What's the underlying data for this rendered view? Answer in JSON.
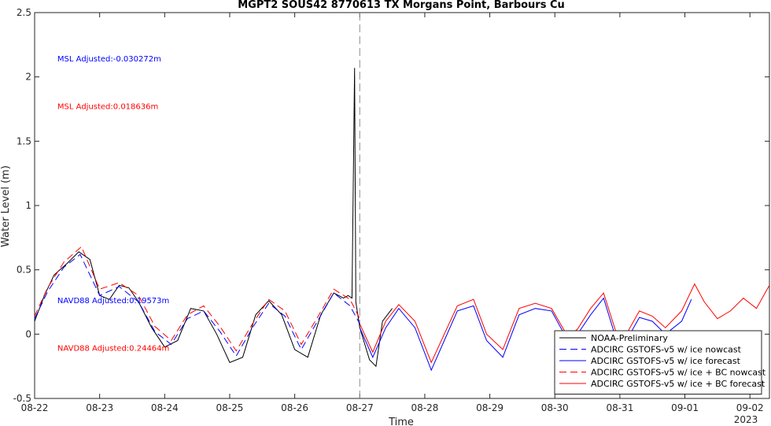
{
  "chart_data": {
    "type": "line",
    "title": "MGPT2 SOUS42 8770613 TX Morgans Point, Barbours Cu",
    "xlabel": "Time",
    "ylabel": "Water Level (m)",
    "ylim": [
      -0.5,
      2.5
    ],
    "xlim": [
      0,
      11.3
    ],
    "y_ticks": [
      -0.5,
      0,
      0.5,
      1,
      1.5,
      2,
      2.5
    ],
    "y_tick_labels": [
      "-0.5",
      "0",
      "0.5",
      "1",
      "1.5",
      "2",
      "2.5"
    ],
    "x_ticks": [
      0,
      1,
      2,
      3,
      4,
      5,
      6,
      7,
      8,
      9,
      10,
      11
    ],
    "x_tick_labels": [
      "08-22",
      "08-23",
      "08-24",
      "08-25",
      "08-26",
      "08-27",
      "08-28",
      "08-29",
      "08-30",
      "08-31",
      "09-01",
      "09-02"
    ],
    "x_year_label": "2023",
    "forecast_start_x": 5.0,
    "grid": false,
    "legend_position": "bottom-right",
    "annotations": [
      {
        "text": "MSL Adjusted:-0.030272m",
        "x": 0.35,
        "y": 2.12,
        "color": "#0000ff"
      },
      {
        "text": "MSL Adjusted:0.018636m",
        "x": 0.35,
        "y": 1.75,
        "color": "#ff0000"
      },
      {
        "text": "NAVD88 Adjusted:0.19573m",
        "x": 0.35,
        "y": 0.24,
        "color": "#0000ff"
      },
      {
        "text": "NAVD88 Adjusted:0.24464m",
        "x": 0.35,
        "y": -0.13,
        "color": "#ff0000"
      }
    ],
    "series": [
      {
        "name": "NOAA-Preliminary",
        "color": "#000000",
        "dash": "solid",
        "x": [
          0,
          0.15,
          0.3,
          0.5,
          0.68,
          0.85,
          1.0,
          1.15,
          1.3,
          1.45,
          1.6,
          1.8,
          2.0,
          2.2,
          2.4,
          2.6,
          2.8,
          3.0,
          3.2,
          3.4,
          3.6,
          3.8,
          4.0,
          4.2,
          4.4,
          4.6,
          4.75,
          4.82,
          4.88,
          4.92,
          4.94,
          5.0,
          5.15,
          5.25,
          5.35,
          5.5
        ],
        "y": [
          0.1,
          0.3,
          0.46,
          0.55,
          0.64,
          0.58,
          0.3,
          0.27,
          0.38,
          0.36,
          0.25,
          0.05,
          -0.1,
          -0.05,
          0.2,
          0.18,
          0.0,
          -0.22,
          -0.18,
          0.15,
          0.26,
          0.15,
          -0.12,
          -0.18,
          0.15,
          0.32,
          0.28,
          0.3,
          0.28,
          2.07,
          0.25,
          0.05,
          -0.2,
          -0.25,
          0.1,
          0.2
        ]
      },
      {
        "name": "ADCIRC GSTOFS-v5 w/ ice nowcast",
        "color": "#0000ff",
        "dash": "dashed",
        "x": [
          0,
          0.2,
          0.45,
          0.7,
          1.0,
          1.3,
          1.6,
          1.85,
          2.1,
          2.35,
          2.6,
          2.85,
          3.1,
          3.35,
          3.6,
          3.85,
          4.1,
          4.35,
          4.6,
          4.85,
          5.0
        ],
        "y": [
          0.12,
          0.33,
          0.52,
          0.62,
          0.3,
          0.37,
          0.25,
          0.02,
          -0.08,
          0.12,
          0.18,
          0.02,
          -0.17,
          0.05,
          0.24,
          0.14,
          -0.12,
          0.1,
          0.32,
          0.22,
          0.08
        ]
      },
      {
        "name": "ADCIRC GSTOFS-v5 w/ ice forecast",
        "color": "#0000ff",
        "dash": "solid",
        "x": [
          5.0,
          5.2,
          5.4,
          5.6,
          5.85,
          6.1,
          6.3,
          6.5,
          6.75,
          6.95,
          7.2,
          7.45,
          7.7,
          7.95,
          8.2,
          8.35,
          8.55,
          8.75,
          8.95,
          9.1,
          9.3,
          9.5,
          9.7,
          9.95,
          10.1
        ],
        "y": [
          0.05,
          -0.18,
          0.05,
          0.2,
          0.05,
          -0.28,
          -0.05,
          0.18,
          0.22,
          -0.05,
          -0.18,
          0.15,
          0.2,
          0.18,
          -0.05,
          0.0,
          0.15,
          0.28,
          -0.05,
          -0.05,
          0.13,
          0.1,
          0.0,
          0.1,
          0.27
        ]
      },
      {
        "name": "ADCIRC GSTOFS-v5 w/ ice + BC nowcast",
        "color": "#ff0000",
        "dash": "dashed",
        "x": [
          0,
          0.2,
          0.45,
          0.72,
          1.0,
          1.3,
          1.6,
          1.85,
          2.1,
          2.35,
          2.6,
          2.85,
          3.1,
          3.35,
          3.6,
          3.85,
          4.1,
          4.35,
          4.6,
          4.85,
          5.0
        ],
        "y": [
          0.14,
          0.36,
          0.56,
          0.68,
          0.35,
          0.4,
          0.3,
          0.06,
          -0.05,
          0.15,
          0.22,
          0.06,
          -0.13,
          0.08,
          0.27,
          0.18,
          -0.08,
          0.13,
          0.35,
          0.27,
          0.12
        ]
      },
      {
        "name": "ADCIRC GSTOFS-v5 w/ ice + BC forecast",
        "color": "#ff0000",
        "dash": "solid",
        "x": [
          5.0,
          5.2,
          5.4,
          5.6,
          5.85,
          6.1,
          6.3,
          6.5,
          6.75,
          6.95,
          7.2,
          7.45,
          7.7,
          7.95,
          8.2,
          8.35,
          8.55,
          8.75,
          8.95,
          9.1,
          9.3,
          9.5,
          9.7,
          9.95,
          10.15,
          10.3,
          10.5,
          10.7,
          10.9,
          11.1,
          11.3
        ],
        "y": [
          0.08,
          -0.14,
          0.1,
          0.23,
          0.1,
          -0.22,
          0.0,
          0.22,
          0.27,
          0.0,
          -0.12,
          0.2,
          0.24,
          0.2,
          -0.02,
          0.04,
          0.2,
          0.32,
          0.0,
          0.0,
          0.18,
          0.14,
          0.05,
          0.18,
          0.39,
          0.25,
          0.12,
          0.18,
          0.28,
          0.2,
          0.38
        ]
      }
    ]
  }
}
